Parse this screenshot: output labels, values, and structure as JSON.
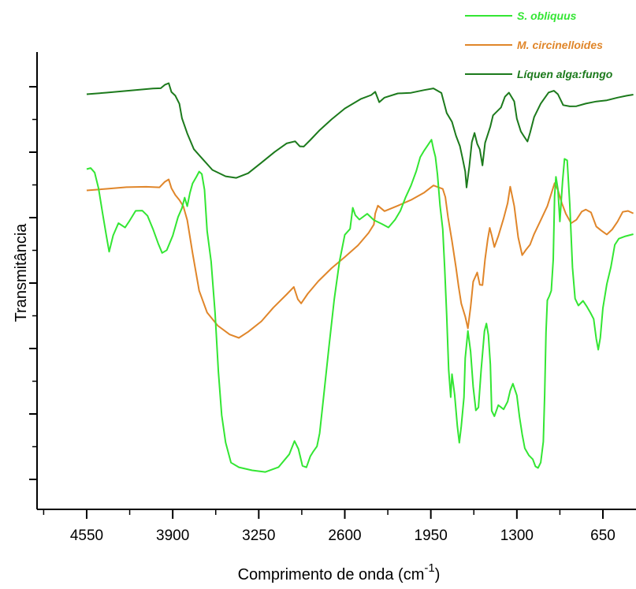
{
  "chart_data": {
    "type": "line",
    "title": "",
    "xlabel": "Comprimento de onda (cm",
    "xlabel_sup": "-1",
    "xlabel_close": ")",
    "ylabel": "Transmitância",
    "xlim": [
      4925,
      400
    ],
    "x_reversed": true,
    "x_ticks": [
      4550,
      3900,
      3250,
      2600,
      1950,
      1300,
      650
    ],
    "y_ticks_labeled": false,
    "grid": false,
    "legend_position": "top-right",
    "legend": [
      {
        "name": "S. obliquus",
        "color": "#33e633",
        "italic": true
      },
      {
        "name": "M. circinelloides",
        "color": "#e0862a",
        "italic": true
      },
      {
        "name": "Líquen alga:fungo",
        "color": "#1c7a1c",
        "italic": false
      }
    ],
    "series": [
      {
        "name": "Líquen alga:fungo",
        "color": "#1c7a1c",
        "points": [
          [
            4550,
            120
          ],
          [
            4400,
            118
          ],
          [
            4200,
            114
          ],
          [
            4050,
            113
          ],
          [
            3990,
            112
          ],
          [
            3960,
            109
          ],
          [
            3930,
            104
          ],
          [
            3910,
            116
          ],
          [
            3880,
            122
          ],
          [
            3850,
            130
          ],
          [
            3830,
            150
          ],
          [
            3790,
            170
          ],
          [
            3740,
            188
          ],
          [
            3680,
            202
          ],
          [
            3600,
            216
          ],
          [
            3500,
            224
          ],
          [
            3420,
            226
          ],
          [
            3330,
            220
          ],
          [
            3230,
            206
          ],
          [
            3130,
            192
          ],
          [
            3040,
            181
          ],
          [
            2975,
            178
          ],
          [
            2940,
            185
          ],
          [
            2910,
            187
          ],
          [
            2860,
            176
          ],
          [
            2790,
            165
          ],
          [
            2700,
            151
          ],
          [
            2600,
            137
          ],
          [
            2480,
            126
          ],
          [
            2400,
            122
          ],
          [
            2370,
            116
          ],
          [
            2340,
            128
          ],
          [
            2300,
            124
          ],
          [
            2200,
            120
          ],
          [
            2100,
            117
          ],
          [
            2000,
            114
          ],
          [
            1930,
            112
          ],
          [
            1870,
            118
          ],
          [
            1830,
            142
          ],
          [
            1790,
            156
          ],
          [
            1760,
            173
          ],
          [
            1730,
            185
          ],
          [
            1710,
            200
          ],
          [
            1690,
            218
          ],
          [
            1680,
            238
          ],
          [
            1660,
            212
          ],
          [
            1640,
            180
          ],
          [
            1620,
            168
          ],
          [
            1600,
            182
          ],
          [
            1580,
            190
          ],
          [
            1560,
            210
          ],
          [
            1540,
            182
          ],
          [
            1520,
            170
          ],
          [
            1500,
            160
          ],
          [
            1480,
            146
          ],
          [
            1420,
            136
          ],
          [
            1390,
            122
          ],
          [
            1360,
            118
          ],
          [
            1320,
            128
          ],
          [
            1300,
            150
          ],
          [
            1270,
            168
          ],
          [
            1250,
            172
          ],
          [
            1220,
            178
          ],
          [
            1200,
            168
          ],
          [
            1170,
            150
          ],
          [
            1120,
            130
          ],
          [
            1060,
            118
          ],
          [
            1020,
            114
          ],
          [
            990,
            120
          ],
          [
            950,
            132
          ],
          [
            900,
            136
          ],
          [
            850,
            134
          ],
          [
            780,
            132
          ],
          [
            700,
            130
          ],
          [
            620,
            128
          ],
          [
            540,
            124
          ],
          [
            470,
            122
          ],
          [
            420,
            120
          ]
        ]
      },
      {
        "name": "M. circinelloides",
        "color": "#e0862a",
        "points": [
          [
            4550,
            242
          ],
          [
            4400,
            240
          ],
          [
            4250,
            238
          ],
          [
            4100,
            236
          ],
          [
            4000,
            238
          ],
          [
            3960,
            232
          ],
          [
            3930,
            226
          ],
          [
            3910,
            238
          ],
          [
            3880,
            248
          ],
          [
            3850,
            252
          ],
          [
            3820,
            260
          ],
          [
            3790,
            280
          ],
          [
            3750,
            320
          ],
          [
            3700,
            370
          ],
          [
            3640,
            396
          ],
          [
            3560,
            413
          ],
          [
            3470,
            424
          ],
          [
            3400,
            428
          ],
          [
            3330,
            422
          ],
          [
            3230,
            406
          ],
          [
            3140,
            390
          ],
          [
            3040,
            372
          ],
          [
            2985,
            364
          ],
          [
            2955,
            378
          ],
          [
            2930,
            384
          ],
          [
            2880,
            372
          ],
          [
            2800,
            358
          ],
          [
            2700,
            340
          ],
          [
            2600,
            326
          ],
          [
            2500,
            310
          ],
          [
            2420,
            294
          ],
          [
            2380,
            286
          ],
          [
            2370,
            272
          ],
          [
            2350,
            260
          ],
          [
            2300,
            268
          ],
          [
            2200,
            262
          ],
          [
            2100,
            254
          ],
          [
            2000,
            244
          ],
          [
            1930,
            236
          ],
          [
            1860,
            240
          ],
          [
            1840,
            250
          ],
          [
            1820,
            275
          ],
          [
            1790,
            305
          ],
          [
            1760,
            340
          ],
          [
            1740,
            365
          ],
          [
            1720,
            385
          ],
          [
            1690,
            400
          ],
          [
            1670,
            418
          ],
          [
            1650,
            390
          ],
          [
            1630,
            358
          ],
          [
            1600,
            345
          ],
          [
            1580,
            360
          ],
          [
            1560,
            362
          ],
          [
            1540,
            330
          ],
          [
            1520,
            305
          ],
          [
            1505,
            288
          ],
          [
            1490,
            298
          ],
          [
            1470,
            312
          ],
          [
            1440,
            300
          ],
          [
            1400,
            276
          ],
          [
            1370,
            257
          ],
          [
            1350,
            238
          ],
          [
            1320,
            262
          ],
          [
            1290,
            300
          ],
          [
            1260,
            325
          ],
          [
            1230,
            318
          ],
          [
            1200,
            310
          ],
          [
            1170,
            296
          ],
          [
            1120,
            280
          ],
          [
            1070,
            262
          ],
          [
            1040,
            246
          ],
          [
            1015,
            232
          ],
          [
            990,
            240
          ],
          [
            960,
            258
          ],
          [
            930,
            272
          ],
          [
            890,
            282
          ],
          [
            850,
            280
          ],
          [
            810,
            268
          ],
          [
            780,
            266
          ],
          [
            740,
            270
          ],
          [
            700,
            286
          ],
          [
            660,
            294
          ],
          [
            620,
            296
          ],
          [
            580,
            292
          ],
          [
            540,
            280
          ],
          [
            500,
            270
          ],
          [
            460,
            268
          ],
          [
            420,
            270
          ]
        ]
      },
      {
        "name": "S. obliquus",
        "color": "#33e633",
        "points": [
          [
            4550,
            215
          ],
          [
            4520,
            212
          ],
          [
            4490,
            220
          ],
          [
            4460,
            240
          ],
          [
            4430,
            270
          ],
          [
            4400,
            300
          ],
          [
            4380,
            320
          ],
          [
            4350,
            300
          ],
          [
            4310,
            282
          ],
          [
            4260,
            290
          ],
          [
            4230,
            280
          ],
          [
            4180,
            268
          ],
          [
            4130,
            266
          ],
          [
            4090,
            275
          ],
          [
            4050,
            290
          ],
          [
            4010,
            310
          ],
          [
            3980,
            322
          ],
          [
            3945,
            316
          ],
          [
            3900,
            300
          ],
          [
            3860,
            275
          ],
          [
            3830,
            265
          ],
          [
            3810,
            252
          ],
          [
            3790,
            262
          ],
          [
            3770,
            244
          ],
          [
            3750,
            232
          ],
          [
            3720,
            225
          ],
          [
            3700,
            218
          ],
          [
            3680,
            222
          ],
          [
            3660,
            240
          ],
          [
            3640,
            292
          ],
          [
            3610,
            332
          ],
          [
            3580,
            398
          ],
          [
            3555,
            470
          ],
          [
            3530,
            525
          ],
          [
            3500,
            562
          ],
          [
            3460,
            586
          ],
          [
            3400,
            594
          ],
          [
            3300,
            598
          ],
          [
            3200,
            598
          ],
          [
            3100,
            592
          ],
          [
            3020,
            576
          ],
          [
            2980,
            560
          ],
          [
            2950,
            568
          ],
          [
            2920,
            590
          ],
          [
            2890,
            594
          ],
          [
            2860,
            580
          ],
          [
            2840,
            572
          ],
          [
            2810,
            566
          ],
          [
            2790,
            550
          ],
          [
            2760,
            505
          ],
          [
            2720,
            440
          ],
          [
            2680,
            380
          ],
          [
            2640,
            330
          ],
          [
            2600,
            298
          ],
          [
            2560,
            290
          ],
          [
            2540,
            262
          ],
          [
            2520,
            272
          ],
          [
            2490,
            280
          ],
          [
            2430,
            270
          ],
          [
            2380,
            280
          ],
          [
            2320,
            285
          ],
          [
            2270,
            288
          ],
          [
            2220,
            280
          ],
          [
            2180,
            266
          ],
          [
            2140,
            250
          ],
          [
            2100,
            235
          ],
          [
            2060,
            217
          ],
          [
            2030,
            200
          ],
          [
            2000,
            190
          ],
          [
            1970,
            182
          ],
          [
            1945,
            178
          ],
          [
            1930,
            190
          ],
          [
            1915,
            200
          ],
          [
            1900,
            222
          ],
          [
            1880,
            260
          ],
          [
            1860,
            290
          ],
          [
            1845,
            340
          ],
          [
            1830,
            400
          ],
          [
            1815,
            470
          ],
          [
            1800,
            504
          ],
          [
            1790,
            475
          ],
          [
            1770,
            500
          ],
          [
            1750,
            540
          ],
          [
            1735,
            560
          ],
          [
            1720,
            540
          ],
          [
            1700,
            505
          ],
          [
            1690,
            455
          ],
          [
            1670,
            420
          ],
          [
            1650,
            445
          ],
          [
            1630,
            490
          ],
          [
            1610,
            520
          ],
          [
            1590,
            518
          ],
          [
            1570,
            470
          ],
          [
            1545,
            420
          ],
          [
            1530,
            410
          ],
          [
            1515,
            425
          ],
          [
            1500,
            462
          ],
          [
            1490,
            520
          ],
          [
            1470,
            528
          ],
          [
            1440,
            515
          ],
          [
            1400,
            518
          ],
          [
            1370,
            510
          ],
          [
            1350,
            496
          ],
          [
            1330,
            485
          ],
          [
            1300,
            500
          ],
          [
            1280,
            530
          ],
          [
            1260,
            552
          ],
          [
            1240,
            570
          ],
          [
            1210,
            576
          ],
          [
            1180,
            582
          ],
          [
            1160,
            592
          ],
          [
            1140,
            594
          ],
          [
            1120,
            585
          ],
          [
            1100,
            560
          ],
          [
            1090,
            500
          ],
          [
            1080,
            420
          ],
          [
            1070,
            380
          ],
          [
            1055,
            376
          ],
          [
            1040,
            370
          ],
          [
            1025,
            330
          ],
          [
            1015,
            250
          ],
          [
            1005,
            225
          ],
          [
            990,
            240
          ],
          [
            975,
            280
          ],
          [
            955,
            230
          ],
          [
            940,
            200
          ],
          [
            920,
            205
          ],
          [
            900,
            260
          ],
          [
            880,
            340
          ],
          [
            860,
            378
          ],
          [
            835,
            386
          ],
          [
            800,
            382
          ],
          [
            770,
            388
          ],
          [
            745,
            395
          ],
          [
            720,
            405
          ],
          [
            700,
            430
          ],
          [
            685,
            445
          ],
          [
            670,
            430
          ],
          [
            650,
            390
          ],
          [
            620,
            360
          ],
          [
            590,
            340
          ],
          [
            560,
            310
          ],
          [
            530,
            302
          ],
          [
            480,
            300
          ],
          [
            420,
            298
          ]
        ]
      }
    ]
  }
}
